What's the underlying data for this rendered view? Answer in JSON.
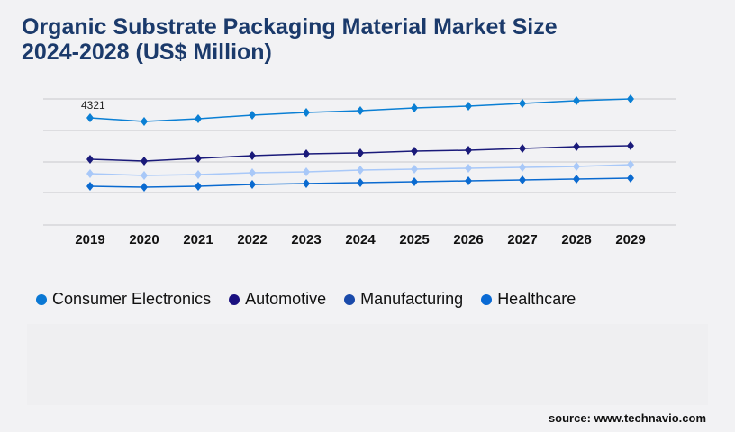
{
  "title_line1": "Organic Substrate Packaging Material Market Size",
  "title_line2": "2024-2028 (US$ Million)",
  "source": "source: www.technavio.com",
  "chart_data": {
    "type": "line",
    "categories": [
      "2019",
      "2020",
      "2021",
      "2022",
      "2023",
      "2024",
      "2025",
      "2026",
      "2027",
      "2028",
      "2029"
    ],
    "ylim": [
      0,
      5083
    ],
    "grid": true,
    "legend_placement": "bottom",
    "annotations": [
      {
        "category": "2019",
        "series": "Consumer Electronics",
        "text": "4321"
      }
    ],
    "series": [
      {
        "name": "Consumer Electronics",
        "color": "#0a7fd4",
        "legend_color": "#0a78d4",
        "values": [
          4321,
          4176,
          4285,
          4430,
          4539,
          4611,
          4720,
          4793,
          4902,
          5011,
          5083
        ]
      },
      {
        "name": "Automotive",
        "color": "#1a1a7a",
        "legend_color": "#1a1080",
        "values": [
          2651,
          2578,
          2687,
          2796,
          2869,
          2905,
          2977,
          3014,
          3086,
          3159,
          3195
        ]
      },
      {
        "name": "Manufacturing",
        "color": "#a8c8f8",
        "legend_color": "#1a4aaa",
        "values": [
          2070,
          1997,
          2033,
          2106,
          2142,
          2215,
          2251,
          2288,
          2324,
          2360,
          2433
        ]
      },
      {
        "name": "Healthcare",
        "color": "#0a6ad0",
        "legend_color": "#0a6ad4",
        "values": [
          1561,
          1525,
          1561,
          1634,
          1670,
          1707,
          1743,
          1779,
          1816,
          1852,
          1888
        ]
      }
    ]
  }
}
